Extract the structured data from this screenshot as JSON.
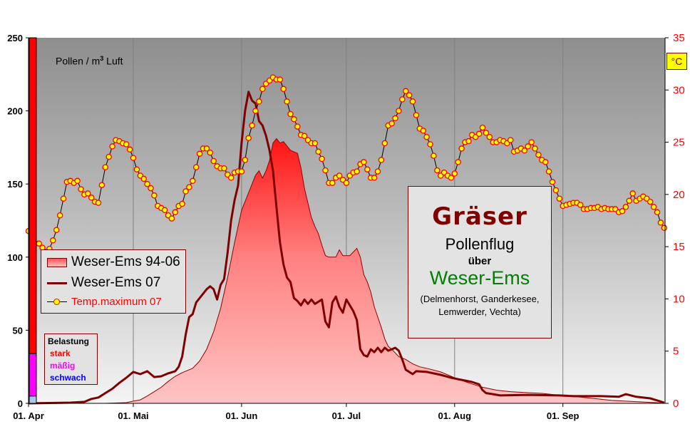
{
  "chart_data": {
    "type": "line",
    "plot_label": "Pollen / m",
    "plot_label_sup": "3",
    "plot_label_suffix": " Luft",
    "left_axis": {
      "range": [
        0,
        250
      ],
      "ticks": [
        "0",
        "50",
        "100",
        "150",
        "200",
        "250"
      ]
    },
    "right_axis": {
      "range": [
        0,
        35
      ],
      "ticks": [
        "0",
        "5",
        "10",
        "15",
        "20",
        "25",
        "30",
        "35"
      ],
      "unit_label": "°C",
      "color": "#ff0000"
    },
    "x_axis": {
      "range": [
        "04-01",
        "09-30"
      ],
      "ticks": [
        {
          "date": "04-01",
          "label": "01. Apr"
        },
        {
          "date": "05-01",
          "label": "01. Mai"
        },
        {
          "date": "06-01",
          "label": "01. Jun"
        },
        {
          "date": "07-01",
          "label": "01. Jul"
        },
        {
          "date": "08-01",
          "label": "01. Aug"
        },
        {
          "date": "09-01",
          "label": "01. Sep"
        }
      ],
      "vertical_grid": true
    },
    "series": [
      {
        "name": "Weser-Ems 94-06",
        "kind": "area",
        "axis": "left",
        "color": "#ff2020",
        "points": [
          [
            "04-23",
            0
          ],
          [
            "04-29",
            0.5
          ],
          [
            "05-01",
            1.5
          ],
          [
            "05-03",
            2.4
          ],
          [
            "05-05",
            5
          ],
          [
            "05-07",
            8
          ],
          [
            "05-09",
            11
          ],
          [
            "05-11",
            15
          ],
          [
            "05-13",
            18.5
          ],
          [
            "05-15",
            21
          ],
          [
            "05-18",
            24
          ],
          [
            "05-20",
            29
          ],
          [
            "05-22",
            37
          ],
          [
            "05-24",
            49
          ],
          [
            "05-26",
            65
          ],
          [
            "05-28",
            86
          ],
          [
            "05-30",
            110
          ],
          [
            "06-01",
            132
          ],
          [
            "06-03",
            144
          ],
          [
            "06-05",
            156
          ],
          [
            "06-06",
            159
          ],
          [
            "06-07",
            154
          ],
          [
            "06-08",
            159
          ],
          [
            "06-09",
            166
          ],
          [
            "06-10",
            178
          ],
          [
            "06-11",
            181
          ],
          [
            "06-12",
            178
          ],
          [
            "06-13",
            179
          ],
          [
            "06-14",
            176
          ],
          [
            "06-15",
            173
          ],
          [
            "06-17",
            171
          ],
          [
            "06-18",
            161
          ],
          [
            "06-19",
            147
          ],
          [
            "06-20",
            137
          ],
          [
            "06-21",
            127
          ],
          [
            "06-22",
            121
          ],
          [
            "06-23",
            116
          ],
          [
            "06-24",
            108
          ],
          [
            "06-25",
            101
          ],
          [
            "06-26",
            100
          ],
          [
            "06-28",
            100
          ],
          [
            "06-29",
            105
          ],
          [
            "06-30",
            101
          ],
          [
            "07-02",
            101
          ],
          [
            "07-04",
            106
          ],
          [
            "07-05",
            100
          ],
          [
            "07-06",
            88
          ],
          [
            "07-07",
            83
          ],
          [
            "07-08",
            76
          ],
          [
            "07-09",
            66
          ],
          [
            "07-10",
            59
          ],
          [
            "07-11",
            52
          ],
          [
            "07-12",
            44
          ],
          [
            "07-13",
            39
          ],
          [
            "07-14",
            37
          ],
          [
            "07-16",
            32
          ],
          [
            "07-18",
            30
          ],
          [
            "07-20",
            27
          ],
          [
            "07-22",
            25
          ],
          [
            "07-24",
            24
          ],
          [
            "07-28",
            21.5
          ],
          [
            "08-01",
            17.5
          ],
          [
            "08-05",
            14
          ],
          [
            "08-09",
            11
          ],
          [
            "08-13",
            9
          ],
          [
            "08-17",
            8
          ],
          [
            "08-22",
            7.3
          ],
          [
            "08-26",
            6.8
          ],
          [
            "08-30",
            5.8
          ],
          [
            "09-03",
            5
          ],
          [
            "09-07",
            4
          ],
          [
            "09-11",
            3
          ],
          [
            "09-15",
            2
          ],
          [
            "09-23",
            1
          ],
          [
            "09-29",
            0.3
          ]
        ]
      },
      {
        "name": "Weser-Ems 07",
        "kind": "line",
        "axis": "left",
        "color": "#800000",
        "points": [
          [
            "04-01",
            0
          ],
          [
            "04-13",
            0.5
          ],
          [
            "04-17",
            1
          ],
          [
            "04-19",
            3
          ],
          [
            "04-21",
            4
          ],
          [
            "04-23",
            7
          ],
          [
            "04-25",
            10
          ],
          [
            "04-27",
            14
          ],
          [
            "04-29",
            17.5
          ],
          [
            "05-01",
            21.5
          ],
          [
            "05-03",
            20
          ],
          [
            "05-05",
            22
          ],
          [
            "05-07",
            18
          ],
          [
            "05-09",
            18.5
          ],
          [
            "05-11",
            20.5
          ],
          [
            "05-13",
            22
          ],
          [
            "05-14",
            25
          ],
          [
            "05-15",
            32
          ],
          [
            "05-16",
            47
          ],
          [
            "05-17",
            59
          ],
          [
            "05-18",
            61
          ],
          [
            "05-19",
            69
          ],
          [
            "05-21",
            75
          ],
          [
            "05-22",
            78
          ],
          [
            "05-23",
            80
          ],
          [
            "05-24",
            78
          ],
          [
            "05-25",
            71
          ],
          [
            "05-26",
            81
          ],
          [
            "05-27",
            85
          ],
          [
            "05-28",
            103
          ],
          [
            "05-29",
            125
          ],
          [
            "05-30",
            139
          ],
          [
            "05-31",
            149
          ],
          [
            "06-01",
            178
          ],
          [
            "06-02",
            200
          ],
          [
            "06-03",
            213
          ],
          [
            "06-04",
            207
          ],
          [
            "06-05",
            205
          ],
          [
            "06-06",
            193
          ],
          [
            "06-07",
            190
          ],
          [
            "06-08",
            183
          ],
          [
            "06-09",
            173
          ],
          [
            "06-10",
            159
          ],
          [
            "06-11",
            134
          ],
          [
            "06-12",
            110
          ],
          [
            "06-13",
            95
          ],
          [
            "06-14",
            86
          ],
          [
            "06-15",
            83
          ],
          [
            "06-16",
            72
          ],
          [
            "06-17",
            70
          ],
          [
            "06-18",
            67
          ],
          [
            "06-19",
            71
          ],
          [
            "06-20",
            68
          ],
          [
            "06-21",
            71
          ],
          [
            "06-22",
            68
          ],
          [
            "06-24",
            71
          ],
          [
            "06-25",
            56
          ],
          [
            "06-26",
            52
          ],
          [
            "06-27",
            69
          ],
          [
            "06-28",
            73
          ],
          [
            "06-29",
            66
          ],
          [
            "06-30",
            62
          ],
          [
            "07-01",
            71
          ],
          [
            "07-02",
            67
          ],
          [
            "07-03",
            63
          ],
          [
            "07-04",
            57
          ],
          [
            "07-05",
            37
          ],
          [
            "07-06",
            33
          ],
          [
            "07-07",
            32
          ],
          [
            "07-08",
            37
          ],
          [
            "07-09",
            35
          ],
          [
            "07-10",
            38
          ],
          [
            "07-11",
            35
          ],
          [
            "07-12",
            38
          ],
          [
            "07-13",
            36
          ],
          [
            "07-14",
            37
          ],
          [
            "07-15",
            38
          ],
          [
            "07-16",
            36
          ],
          [
            "07-17",
            30
          ],
          [
            "07-18",
            23
          ],
          [
            "07-19",
            21.5
          ],
          [
            "07-20",
            20
          ],
          [
            "07-21",
            22
          ],
          [
            "07-24",
            21.5
          ],
          [
            "07-28",
            19.5
          ],
          [
            "07-31",
            17.5
          ],
          [
            "08-02",
            16.5
          ],
          [
            "08-06",
            14.6
          ],
          [
            "08-08",
            13
          ],
          [
            "08-09",
            9
          ],
          [
            "08-10",
            7
          ],
          [
            "08-12",
            6.3
          ],
          [
            "08-14",
            5.4
          ],
          [
            "08-22",
            5.8
          ],
          [
            "08-31",
            5.4
          ],
          [
            "09-04",
            4.9
          ],
          [
            "09-12",
            4.9
          ],
          [
            "09-17",
            4.5
          ],
          [
            "09-19",
            6.3
          ],
          [
            "09-22",
            4.5
          ],
          [
            "09-26",
            3.4
          ],
          [
            "09-28",
            2
          ],
          [
            "09-30",
            0.5
          ]
        ]
      },
      {
        "name": "Temp.maximum 07",
        "kind": "line-markers",
        "axis": "right",
        "color": "#000000",
        "marker_fill": "#ffff00",
        "marker_stroke": "#ff0000",
        "start": "04-01",
        "step": "1 day",
        "values": [
          16.5,
          15.8,
          15.3,
          15.3,
          14.9,
          14.5,
          14.8,
          15.6,
          16.6,
          18,
          19.6,
          21.2,
          21.3,
          21.1,
          21.3,
          20.5,
          20,
          20.1,
          19.7,
          19.3,
          19.2,
          20.9,
          22.6,
          23.6,
          24.6,
          25.2,
          25.1,
          24.9,
          24.8,
          24.3,
          23.5,
          22.4,
          21.8,
          21.5,
          21,
          20.6,
          19.9,
          18.9,
          18.7,
          18.5,
          18,
          17.7,
          18.3,
          18.9,
          19.1,
          20.3,
          20.7,
          21.3,
          22.6,
          23.9,
          24.4,
          24.4,
          24,
          23.2,
          22.7,
          22.5,
          22.5,
          21.9,
          21.6,
          22.1,
          22.2,
          22.2,
          23.3,
          25.4,
          26.6,
          28,
          28.9,
          30.1,
          30.6,
          30.9,
          31.2,
          31,
          31,
          30.1,
          28.9,
          27.7,
          27.2,
          26.5,
          25.7,
          25.6,
          25.2,
          24.9,
          24.9,
          24.1,
          23.4,
          22.3,
          21.1,
          21.1,
          21.6,
          21.8,
          21.4,
          21.1,
          21.8,
          22.1,
          22.2,
          22.9,
          23.1,
          22.4,
          21.6,
          21.6,
          22.2,
          23.3,
          24.9,
          26.6,
          26.8,
          27.3,
          28,
          29.1,
          29.9,
          29.5,
          28.9,
          27.6,
          26.3,
          26.1,
          25.5,
          24.8,
          23.7,
          22.3,
          21.8,
          22.1,
          21.8,
          21.6,
          22,
          23.1,
          24.4,
          25,
          25.1,
          25.7,
          25.5,
          25.8,
          26.4,
          25.9,
          25.5,
          25,
          25,
          25.2,
          25.1,
          24.9,
          25.2,
          24.1,
          24.2,
          24.4,
          24.2,
          24.6,
          25,
          24.4,
          23.8,
          23.3,
          23.1,
          22.2,
          21.2,
          20.4,
          19.6,
          18.9,
          19,
          19.1,
          19.2,
          19.2,
          19,
          18.6,
          18.6,
          18.7,
          18.7,
          18.8,
          18.6,
          18.7,
          18.6,
          18.6,
          18.6,
          18.3,
          18.4,
          18.8,
          19.4,
          20.1,
          19.4,
          19.6,
          19.8,
          19.6,
          19.3,
          18.8,
          18.3,
          17.3,
          16.8
        ]
      }
    ],
    "belastung_bar": [
      {
        "label": "schwach",
        "from": 0,
        "to": 5,
        "color": "#a8c8f0"
      },
      {
        "label": "mäßig",
        "from": 5,
        "to": 34,
        "color": "#ff00ff"
      },
      {
        "label": "stark",
        "from": 34,
        "to": 250,
        "color": "#ff0000"
      }
    ],
    "legend_placement": "left-middle"
  },
  "belastung": {
    "title": "Belastung",
    "items": [
      {
        "label": "stark",
        "color": "#ff0000"
      },
      {
        "label": "mäßig",
        "color": "#ff00ff"
      },
      {
        "label": "schwach",
        "color": "#0000ff"
      }
    ]
  },
  "titlebox": {
    "title": "Gräser",
    "line1": "Pollenflug",
    "line2": "über",
    "region": "Weser-Ems",
    "places1": "(Delmenhorst, Ganderkesee,",
    "places2": "Lemwerder, Vechta)",
    "title_color": "#800000",
    "region_color": "#008000"
  }
}
